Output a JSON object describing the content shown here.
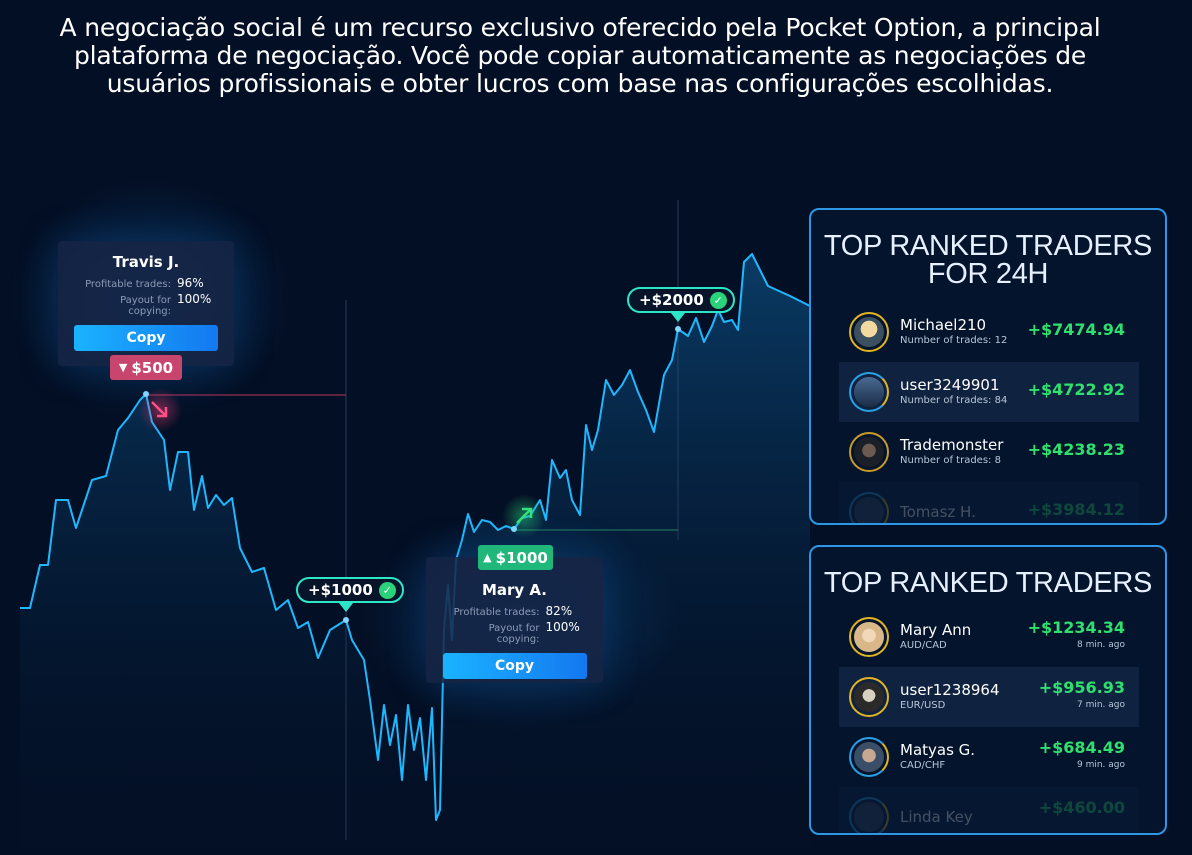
{
  "intro_text": "A negociação social é um recurso exclusivo oferecido pela Pocket Option, a principal plataforma de negociação. Você pode copiar automaticamente as negociações de usuários profissionais e obter lucros com base nas configurações escolhidas.",
  "trader_cards": [
    {
      "name": "Travis J.",
      "profitable_label": "Profitable trades:",
      "profitable_value": "96%",
      "payout_label": "Payout for copying:",
      "payout_value": "100%",
      "copy_label": "Copy"
    },
    {
      "name": "Mary A.",
      "profitable_label": "Profitable trades:",
      "profitable_value": "82%",
      "payout_label": "Payout for copying:",
      "payout_value": "100%",
      "copy_label": "Copy"
    }
  ],
  "markers": {
    "sell_tag": "$500",
    "buy_tag": "$1000",
    "profit_pill_1": "+$1000",
    "profit_pill_2": "+$2000"
  },
  "panel_24h": {
    "title_line1": "TOP RANKED TRADERS",
    "title_line2": "FOR 24H",
    "rows": [
      {
        "name": "Michael210",
        "sub": "Number of trades: 12",
        "amount": "+$7474.94"
      },
      {
        "name": "user3249901",
        "sub": "Number of trades: 84",
        "amount": "+$4722.92"
      },
      {
        "name": "Trademonster",
        "sub": "Number of trades: 8",
        "amount": "+$4238.23"
      },
      {
        "name": "Tomasz H.",
        "sub": "",
        "amount": "+$3984.12"
      }
    ]
  },
  "panel_top": {
    "title": "TOP RANKED TRADERS",
    "rows": [
      {
        "name": "Mary Ann",
        "sub": "AUD/CAD",
        "amount": "+$1234.34",
        "ago": "8 min. ago"
      },
      {
        "name": "user1238964",
        "sub": "EUR/USD",
        "amount": "+$956.93",
        "ago": "7 min. ago"
      },
      {
        "name": "Matyas G.",
        "sub": "CAD/CHF",
        "amount": "+$684.49",
        "ago": "9 min. ago"
      },
      {
        "name": "Linda Key",
        "sub": "",
        "amount": "+$460.00",
        "ago": ""
      }
    ]
  },
  "colors": {
    "background": "#030f24",
    "line": "#1fb8ff",
    "profit": "#2fe06e",
    "panel_border": "#2f96e6",
    "sell": "#c8456e",
    "buy": "#1fb77a"
  }
}
